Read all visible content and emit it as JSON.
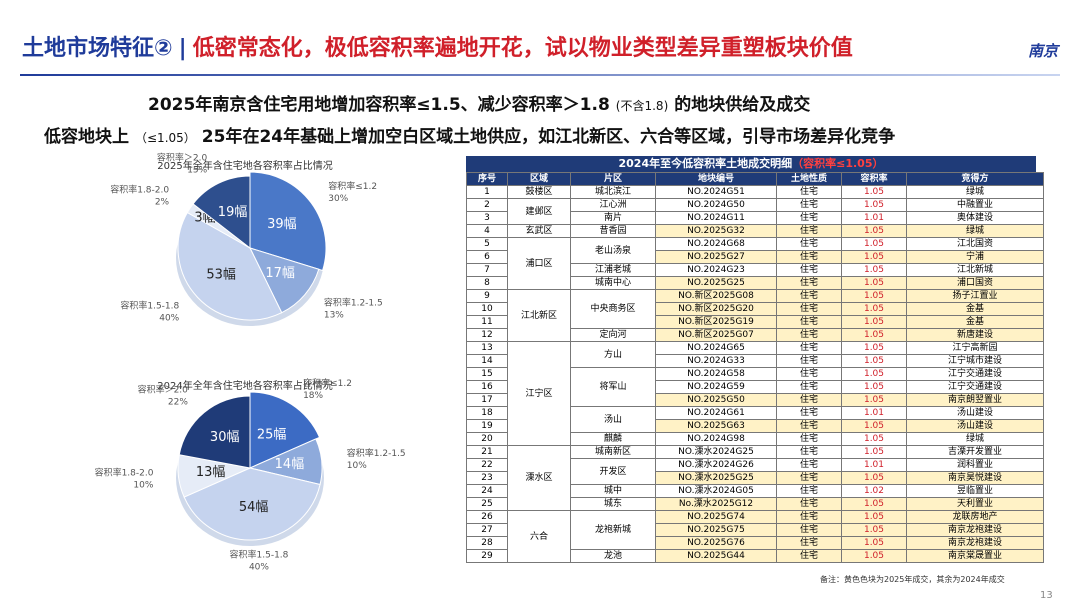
{
  "header": {
    "title": "土地市场特征②",
    "divider": "|",
    "headline": "低密常态化，极低容积率遍地开花，试以物业类型差异重塑板块价值",
    "logo": "南京"
  },
  "subtitle": {
    "line1": {
      "main": "2025年南京含住宅用地增加容积率≤1.5、减少容积率＞1.8",
      "small": "(不含1.8)",
      "tail": "的地块供给及成交"
    },
    "line2": {
      "main": "低容地块上",
      "small": "（≤1.05）",
      "tail": "25年在24年基础上增加空白区域土地供应，如江北新区、六合等区域，引导市场差异化竞争"
    }
  },
  "chart_data": [
    {
      "type": "pie",
      "title": "2025年全年含住宅地各容积率占比情况",
      "categories": [
        "容积率≤1.2",
        "容积率1.2-1.5",
        "容积率1.5-1.8",
        "容积率1.8-2.0",
        "容积率＞2.0"
      ],
      "values": [
        39,
        17,
        53,
        3,
        19
      ],
      "value_labels": [
        "39幅",
        "17幅",
        "53幅",
        "3幅",
        "19幅"
      ],
      "percent_labels": [
        "30%",
        "13%",
        "40%",
        "2%",
        "15%"
      ],
      "colors": [
        "#4a78c8",
        "#8eaadb",
        "#c5d3ee",
        "#e6ecf7",
        "#2e4f8e"
      ]
    },
    {
      "type": "pie",
      "title": "2024年全年含住宅地各容积率占比情况",
      "categories": [
        "容积率≤1.2",
        "容积率1.2-1.5",
        "容积率1.5-1.8",
        "容积率1.8-2.0",
        "容积率＞2.0"
      ],
      "values": [
        25,
        14,
        54,
        13,
        30
      ],
      "value_labels": [
        "25幅",
        "14幅",
        "54幅",
        "13幅",
        "30幅"
      ],
      "percent_labels": [
        "18%",
        "10%",
        "40%",
        "10%",
        "22%"
      ],
      "colors": [
        "#3c6bc4",
        "#8eaadb",
        "#c5d3ee",
        "#e6ecf7",
        "#1f3b78"
      ]
    }
  ],
  "table": {
    "title": "2024年至今低容积率土地成交明细",
    "title_note": "（容积率≤1.05）",
    "columns": [
      "序号",
      "区域",
      "片区",
      "地块编号",
      "土地性质",
      "容积率",
      "竞得方"
    ],
    "rows": [
      [
        1,
        "鼓楼区",
        "城北滨江",
        "NO.2024G51",
        "住宅",
        1.05,
        "绿城"
      ],
      [
        2,
        "建邺区",
        "江心洲",
        "NO.2024G50",
        "住宅",
        1.05,
        "中融置业"
      ],
      [
        3,
        null,
        "南片",
        "NO.2024G11",
        "住宅",
        1.01,
        "奥体建设"
      ],
      [
        4,
        "玄武区",
        "昔香园",
        "NO.2025G32",
        "住宅",
        1.05,
        "绿城"
      ],
      [
        5,
        "浦口区",
        "老山汤泉",
        "NO.2024G68",
        "住宅",
        1.05,
        "江北国资"
      ],
      [
        6,
        null,
        null,
        "NO.2025G27",
        "住宅",
        1.05,
        "宁浦"
      ],
      [
        7,
        null,
        "江浦老城",
        "NO.2024G23",
        "住宅",
        1.05,
        "江北新城"
      ],
      [
        8,
        null,
        "城南中心",
        "NO.2025G25",
        "住宅",
        1.05,
        "浦口国资"
      ],
      [
        9,
        "江北新区",
        "中央商务区",
        "NO.新区2025G08",
        "住宅",
        1.05,
        "扬子江置业"
      ],
      [
        10,
        null,
        null,
        "NO.新区2025G20",
        "住宅",
        1.05,
        "金基"
      ],
      [
        11,
        null,
        null,
        "NO.新区2025G19",
        "住宅",
        1.05,
        "金基"
      ],
      [
        12,
        null,
        "定向河",
        "NO.新区2025G07",
        "住宅",
        1.05,
        "新唐建设"
      ],
      [
        13,
        "江宁区",
        "方山",
        "NO.2024G65",
        "住宅",
        1.05,
        "江宁高新园"
      ],
      [
        14,
        null,
        null,
        "NO.2024G33",
        "住宅",
        1.05,
        "江宁城市建设"
      ],
      [
        15,
        null,
        "将军山",
        "NO.2024G58",
        "住宅",
        1.05,
        "江宁交通建设"
      ],
      [
        16,
        null,
        null,
        "NO.2024G59",
        "住宅",
        1.05,
        "江宁交通建设"
      ],
      [
        17,
        null,
        null,
        "NO.2025G50",
        "住宅",
        1.05,
        "南京朗翌置业"
      ],
      [
        18,
        null,
        "汤山",
        "NO.2024G61",
        "住宅",
        1.01,
        "汤山建设"
      ],
      [
        19,
        null,
        null,
        "NO.2025G63",
        "住宅",
        1.05,
        "汤山建设"
      ],
      [
        20,
        null,
        "麒麟",
        "NO.2024G98",
        "住宅",
        1.05,
        "绿城"
      ],
      [
        21,
        "溧水区",
        "城南新区",
        "NO.溧水2024G25",
        "住宅",
        1.05,
        "吉溧开发置业"
      ],
      [
        22,
        null,
        "开发区",
        "NO.溧水2024G26",
        "住宅",
        1.01,
        "润科置业"
      ],
      [
        23,
        null,
        null,
        "NO.溧水2025G25",
        "住宅",
        1.05,
        "南京昊悦建设"
      ],
      [
        24,
        null,
        "城中",
        "NO.溧水2024G05",
        "住宅",
        1.02,
        "昱临置业"
      ],
      [
        25,
        null,
        "城东",
        "No.溧水2025G12",
        "住宅",
        1.05,
        "天利置业"
      ],
      [
        26,
        "六合",
        "龙袍新城",
        "NO.2025G74",
        "住宅",
        1.05,
        "龙联房地产"
      ],
      [
        27,
        null,
        null,
        "NO.2025G75",
        "住宅",
        1.05,
        "南京龙袍建设"
      ],
      [
        28,
        null,
        null,
        "NO.2025G76",
        "住宅",
        1.05,
        "南京龙袍建设"
      ],
      [
        29,
        null,
        "龙池",
        "NO.2025G44",
        "住宅",
        1.05,
        "南京棠晟置业"
      ]
    ]
  },
  "footer": {
    "note": "备注：黄色色块为2025年成交，其余为2024年成交",
    "page": "13"
  }
}
